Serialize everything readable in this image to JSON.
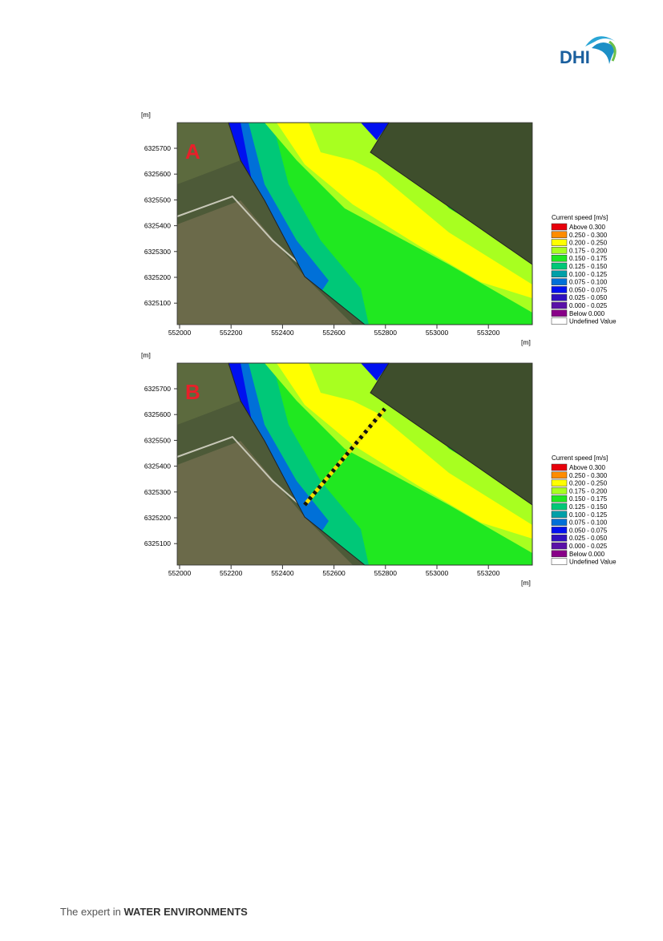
{
  "header": {
    "logo": "DHI"
  },
  "figures": [
    {
      "panel": "A",
      "y_unit": "[m]",
      "x_unit": "[m]",
      "yticks": [
        6325700,
        6325600,
        6325500,
        6325400,
        6325300,
        6325200,
        6325100
      ],
      "xticks": [
        552000,
        552200,
        552400,
        552600,
        552800,
        553000,
        553200
      ],
      "legend": {
        "title": "Current speed [m/s]",
        "entries": [
          {
            "label": "Above  0.300",
            "color": "#e8000b"
          },
          {
            "label": "0.250 - 0.300",
            "color": "#ff8c00"
          },
          {
            "label": "0.200 - 0.250",
            "color": "#ffff00"
          },
          {
            "label": "0.175 - 0.200",
            "color": "#a8ff20"
          },
          {
            "label": "0.150 - 0.175",
            "color": "#20e820"
          },
          {
            "label": "0.125 - 0.150",
            "color": "#00c878"
          },
          {
            "label": "0.100 - 0.125",
            "color": "#00a0a8"
          },
          {
            "label": "0.075 - 0.100",
            "color": "#0070d8"
          },
          {
            "label": "0.050 - 0.075",
            "color": "#0010f0"
          },
          {
            "label": "0.025 - 0.050",
            "color": "#3010c0"
          },
          {
            "label": "0.000 - 0.025",
            "color": "#5a10a8"
          },
          {
            "label": "Below  0.000",
            "color": "#880088"
          },
          {
            "label": "Undefined Value",
            "color": "#ffffff"
          }
        ]
      }
    },
    {
      "panel": "B",
      "y_unit": "[m]",
      "x_unit": "[m]",
      "yticks": [
        6325700,
        6325600,
        6325500,
        6325400,
        6325300,
        6325200,
        6325100
      ],
      "xticks": [
        552000,
        552200,
        552400,
        552600,
        552800,
        553000,
        553200
      ],
      "legend": {
        "title": "Current speed [m/s]",
        "entries": [
          {
            "label": "Above  0.300",
            "color": "#e8000b"
          },
          {
            "label": "0.250 - 0.300",
            "color": "#ff8c00"
          },
          {
            "label": "0.200 - 0.250",
            "color": "#ffff00"
          },
          {
            "label": "0.175 - 0.200",
            "color": "#a8ff20"
          },
          {
            "label": "0.150 - 0.175",
            "color": "#20e820"
          },
          {
            "label": "0.125 - 0.150",
            "color": "#00c878"
          },
          {
            "label": "0.100 - 0.125",
            "color": "#00a0a8"
          },
          {
            "label": "0.075 - 0.100",
            "color": "#0070d8"
          },
          {
            "label": "0.050 - 0.075",
            "color": "#0010f0"
          },
          {
            "label": "0.025 - 0.050",
            "color": "#3010c0"
          },
          {
            "label": "0.000 - 0.025",
            "color": "#5a10a8"
          },
          {
            "label": "Below  0.000",
            "color": "#880088"
          },
          {
            "label": "Undefined Value",
            "color": "#ffffff"
          }
        ]
      }
    }
  ],
  "footer": {
    "lead": "The expert in",
    "brand": "WATER ENVIRONMENTS"
  }
}
